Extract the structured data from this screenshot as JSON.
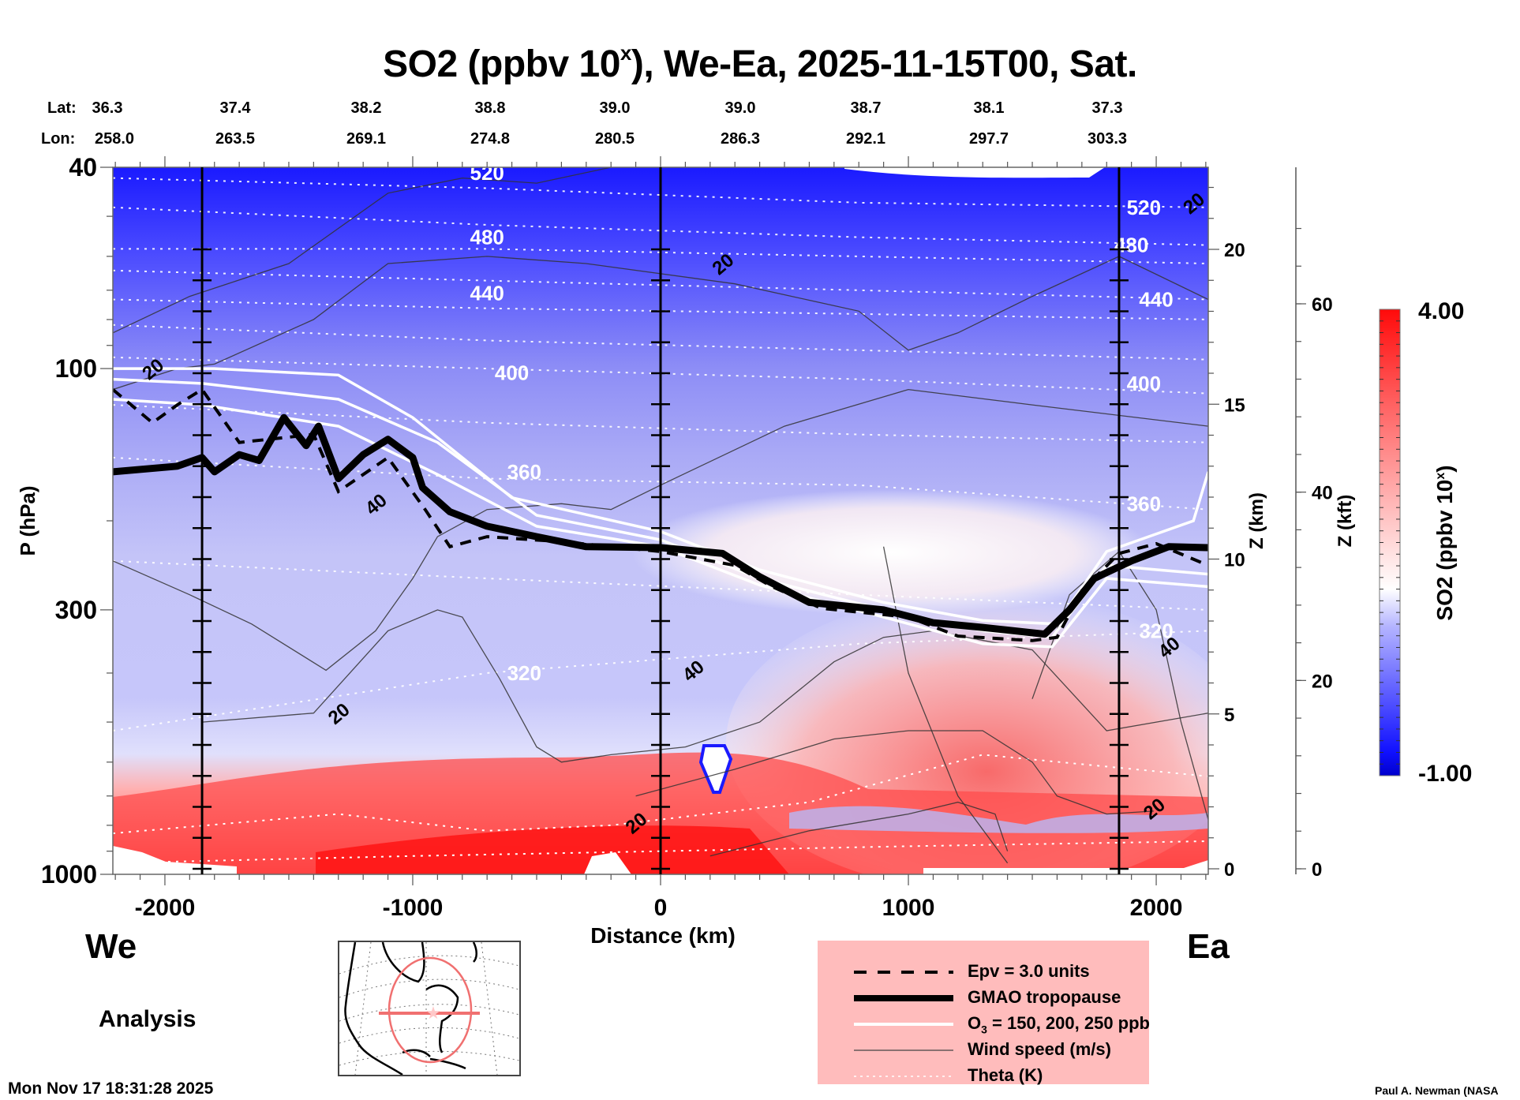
{
  "title": {
    "prefix": "SO2 (ppbv 10",
    "superscript": "x",
    "suffix": "), We-Ea, 2025-11-15T00, Sat."
  },
  "coords": {
    "lat_label": "Lat:",
    "lon_label": "Lon:",
    "lat": [
      "36.3",
      "37.4",
      "38.2",
      "38.8",
      "39.0",
      "39.0",
      "38.7",
      "38.1",
      "37.3"
    ],
    "lon": [
      "258.0",
      "263.5",
      "269.1",
      "274.8",
      "280.5",
      "286.3",
      "292.1",
      "297.7",
      "303.3"
    ]
  },
  "sides": {
    "west": "We",
    "east": "Ea"
  },
  "analysis_label": "Analysis",
  "timestamp": "Mon Nov 17 18:31:28 2025",
  "credit": "Paul A. Newman (NASA",
  "colors": {
    "so2_low": "#0000d0",
    "so2_mid": "#ffffff",
    "so2_high": "#ff0000",
    "legend_bg": "#ffbcbc",
    "map_circle": "#f07070"
  },
  "legend": {
    "items": [
      {
        "key": "epv",
        "label": "Epv = 3.0 units"
      },
      {
        "key": "tropopause",
        "label": "GMAO tropopause"
      },
      {
        "key": "o3",
        "label_prefix": "O",
        "label_sub": "3",
        "label_suffix": " = 150, 200, 250 ppb"
      },
      {
        "key": "wind",
        "label": "Wind speed (m/s)"
      },
      {
        "key": "theta",
        "label": "Theta (K)"
      }
    ]
  },
  "chart_data": {
    "type": "heatmap",
    "title": "SO2 (ppbv 10^x), We-Ea, 2025-11-15T00, Sat.",
    "xlabel": "Distance (km)",
    "ylabel": "P (hPa)",
    "y2label": "Z (km)",
    "y3label": "Z (kft)",
    "colorbar_label": "SO2 (ppbv 10^x)",
    "xlim": [
      -2210,
      2210
    ],
    "ylim": [
      1000,
      40
    ],
    "yscale": "log",
    "x_ticks": [
      -2000,
      -1000,
      0,
      1000,
      2000
    ],
    "y_ticks": [
      40,
      100,
      300,
      1000
    ],
    "z_km_ticks": [
      0,
      5,
      10,
      15,
      20
    ],
    "z_kft_ticks": [
      0,
      20,
      40,
      60
    ],
    "colorbar_range": [
      -1.0,
      4.0
    ],
    "colorbar_tick_labels": [
      "4.00",
      "-1.00"
    ],
    "section_markers_km": [
      -1850,
      0,
      1850
    ],
    "theta_levels_K": [
      320,
      360,
      400,
      440,
      480,
      520
    ],
    "theta_label_positions": [
      {
        "value": 520,
        "x_km": -700,
        "p_hPa": 41
      },
      {
        "value": 480,
        "x_km": -700,
        "p_hPa": 55
      },
      {
        "value": 440,
        "x_km": -700,
        "p_hPa": 71
      },
      {
        "value": 400,
        "x_km": -600,
        "p_hPa": 102
      },
      {
        "value": 360,
        "x_km": -550,
        "p_hPa": 160
      },
      {
        "value": 320,
        "x_km": -550,
        "p_hPa": 400
      },
      {
        "value": 520,
        "x_km": 1950,
        "p_hPa": 48
      },
      {
        "value": 480,
        "x_km": 1900,
        "p_hPa": 57
      },
      {
        "value": 440,
        "x_km": 2000,
        "p_hPa": 73
      },
      {
        "value": 400,
        "x_km": 1950,
        "p_hPa": 107
      },
      {
        "value": 360,
        "x_km": 1950,
        "p_hPa": 185
      },
      {
        "value": 320,
        "x_km": 2000,
        "p_hPa": 330
      }
    ],
    "wind_labels": [
      {
        "value": 20,
        "x_km": -2050,
        "p_hPa": 100
      },
      {
        "value": 40,
        "x_km": -1150,
        "p_hPa": 185
      },
      {
        "value": 20,
        "x_km": 250,
        "p_hPa": 62
      },
      {
        "value": 20,
        "x_km": -1300,
        "p_hPa": 480
      },
      {
        "value": 40,
        "x_km": 130,
        "p_hPa": 395
      },
      {
        "value": 20,
        "x_km": -100,
        "p_hPa": 790
      },
      {
        "value": 20,
        "x_km": 2150,
        "p_hPa": 47
      },
      {
        "value": 40,
        "x_km": 2050,
        "p_hPa": 355
      },
      {
        "value": 20,
        "x_km": 1990,
        "p_hPa": 740
      }
    ],
    "tropopause_hPa": [
      {
        "x_km": -2210,
        "p": 160
      },
      {
        "x_km": -1950,
        "p": 156
      },
      {
        "x_km": -1850,
        "p": 150
      },
      {
        "x_km": -1800,
        "p": 160
      },
      {
        "x_km": -1700,
        "p": 148
      },
      {
        "x_km": -1620,
        "p": 152
      },
      {
        "x_km": -1520,
        "p": 125
      },
      {
        "x_km": -1430,
        "p": 142
      },
      {
        "x_km": -1380,
        "p": 130
      },
      {
        "x_km": -1300,
        "p": 165
      },
      {
        "x_km": -1200,
        "p": 148
      },
      {
        "x_km": -1100,
        "p": 138
      },
      {
        "x_km": -1000,
        "p": 150
      },
      {
        "x_km": -960,
        "p": 172
      },
      {
        "x_km": -850,
        "p": 192
      },
      {
        "x_km": -700,
        "p": 205
      },
      {
        "x_km": -500,
        "p": 215
      },
      {
        "x_km": -300,
        "p": 225
      },
      {
        "x_km": 0,
        "p": 226
      },
      {
        "x_km": 250,
        "p": 232
      },
      {
        "x_km": 400,
        "p": 258
      },
      {
        "x_km": 600,
        "p": 290
      },
      {
        "x_km": 900,
        "p": 300
      },
      {
        "x_km": 1100,
        "p": 318
      },
      {
        "x_km": 1300,
        "p": 325
      },
      {
        "x_km": 1550,
        "p": 335
      },
      {
        "x_km": 1650,
        "p": 300
      },
      {
        "x_km": 1750,
        "p": 260
      },
      {
        "x_km": 1900,
        "p": 240
      },
      {
        "x_km": 2050,
        "p": 225
      },
      {
        "x_km": 2210,
        "p": 226
      }
    ],
    "epv_hPa": [
      {
        "x_km": -2210,
        "p": 110
      },
      {
        "x_km": -2050,
        "p": 128
      },
      {
        "x_km": -1950,
        "p": 118
      },
      {
        "x_km": -1850,
        "p": 110
      },
      {
        "x_km": -1700,
        "p": 140
      },
      {
        "x_km": -1400,
        "p": 135
      },
      {
        "x_km": -1300,
        "p": 175
      },
      {
        "x_km": -1100,
        "p": 150
      },
      {
        "x_km": -950,
        "p": 190
      },
      {
        "x_km": -850,
        "p": 225
      },
      {
        "x_km": -700,
        "p": 215
      },
      {
        "x_km": -400,
        "p": 220
      },
      {
        "x_km": 0,
        "p": 230
      },
      {
        "x_km": 300,
        "p": 245
      },
      {
        "x_km": 450,
        "p": 270
      },
      {
        "x_km": 650,
        "p": 298
      },
      {
        "x_km": 1000,
        "p": 310
      },
      {
        "x_km": 1200,
        "p": 338
      },
      {
        "x_km": 1500,
        "p": 345
      },
      {
        "x_km": 1600,
        "p": 340
      },
      {
        "x_km": 1700,
        "p": 275
      },
      {
        "x_km": 1850,
        "p": 232
      },
      {
        "x_km": 2000,
        "p": 222
      },
      {
        "x_km": 2210,
        "p": 245
      }
    ],
    "o3_contours_hPa": [
      [
        {
          "x_km": -2210,
          "p": 100
        },
        {
          "x_km": -1800,
          "p": 100
        },
        {
          "x_km": -1300,
          "p": 103
        },
        {
          "x_km": -1000,
          "p": 125
        },
        {
          "x_km": -600,
          "p": 180
        },
        {
          "x_km": 0,
          "p": 210
        },
        {
          "x_km": 400,
          "p": 250
        },
        {
          "x_km": 900,
          "p": 290
        },
        {
          "x_km": 1300,
          "p": 315
        },
        {
          "x_km": 1600,
          "p": 320
        },
        {
          "x_km": 1800,
          "p": 230
        },
        {
          "x_km": 2150,
          "p": 200
        },
        {
          "x_km": 2210,
          "p": 160
        }
      ],
      [
        {
          "x_km": -2210,
          "p": 105
        },
        {
          "x_km": -1850,
          "p": 107
        },
        {
          "x_km": -1300,
          "p": 115
        },
        {
          "x_km": -900,
          "p": 140
        },
        {
          "x_km": -500,
          "p": 195
        },
        {
          "x_km": 0,
          "p": 218
        },
        {
          "x_km": 400,
          "p": 260
        },
        {
          "x_km": 900,
          "p": 300
        },
        {
          "x_km": 1300,
          "p": 330
        },
        {
          "x_km": 1580,
          "p": 340
        },
        {
          "x_km": 1800,
          "p": 245
        },
        {
          "x_km": 2210,
          "p": 255
        }
      ],
      [
        {
          "x_km": -2210,
          "p": 115
        },
        {
          "x_km": -1850,
          "p": 118
        },
        {
          "x_km": -1300,
          "p": 130
        },
        {
          "x_km": -900,
          "p": 162
        },
        {
          "x_km": -500,
          "p": 205
        },
        {
          "x_km": 0,
          "p": 225
        },
        {
          "x_km": 400,
          "p": 268
        },
        {
          "x_km": 900,
          "p": 310
        },
        {
          "x_km": 1300,
          "p": 350
        },
        {
          "x_km": 1580,
          "p": 355
        },
        {
          "x_km": 1800,
          "p": 260
        },
        {
          "x_km": 2210,
          "p": 270
        }
      ]
    ]
  }
}
